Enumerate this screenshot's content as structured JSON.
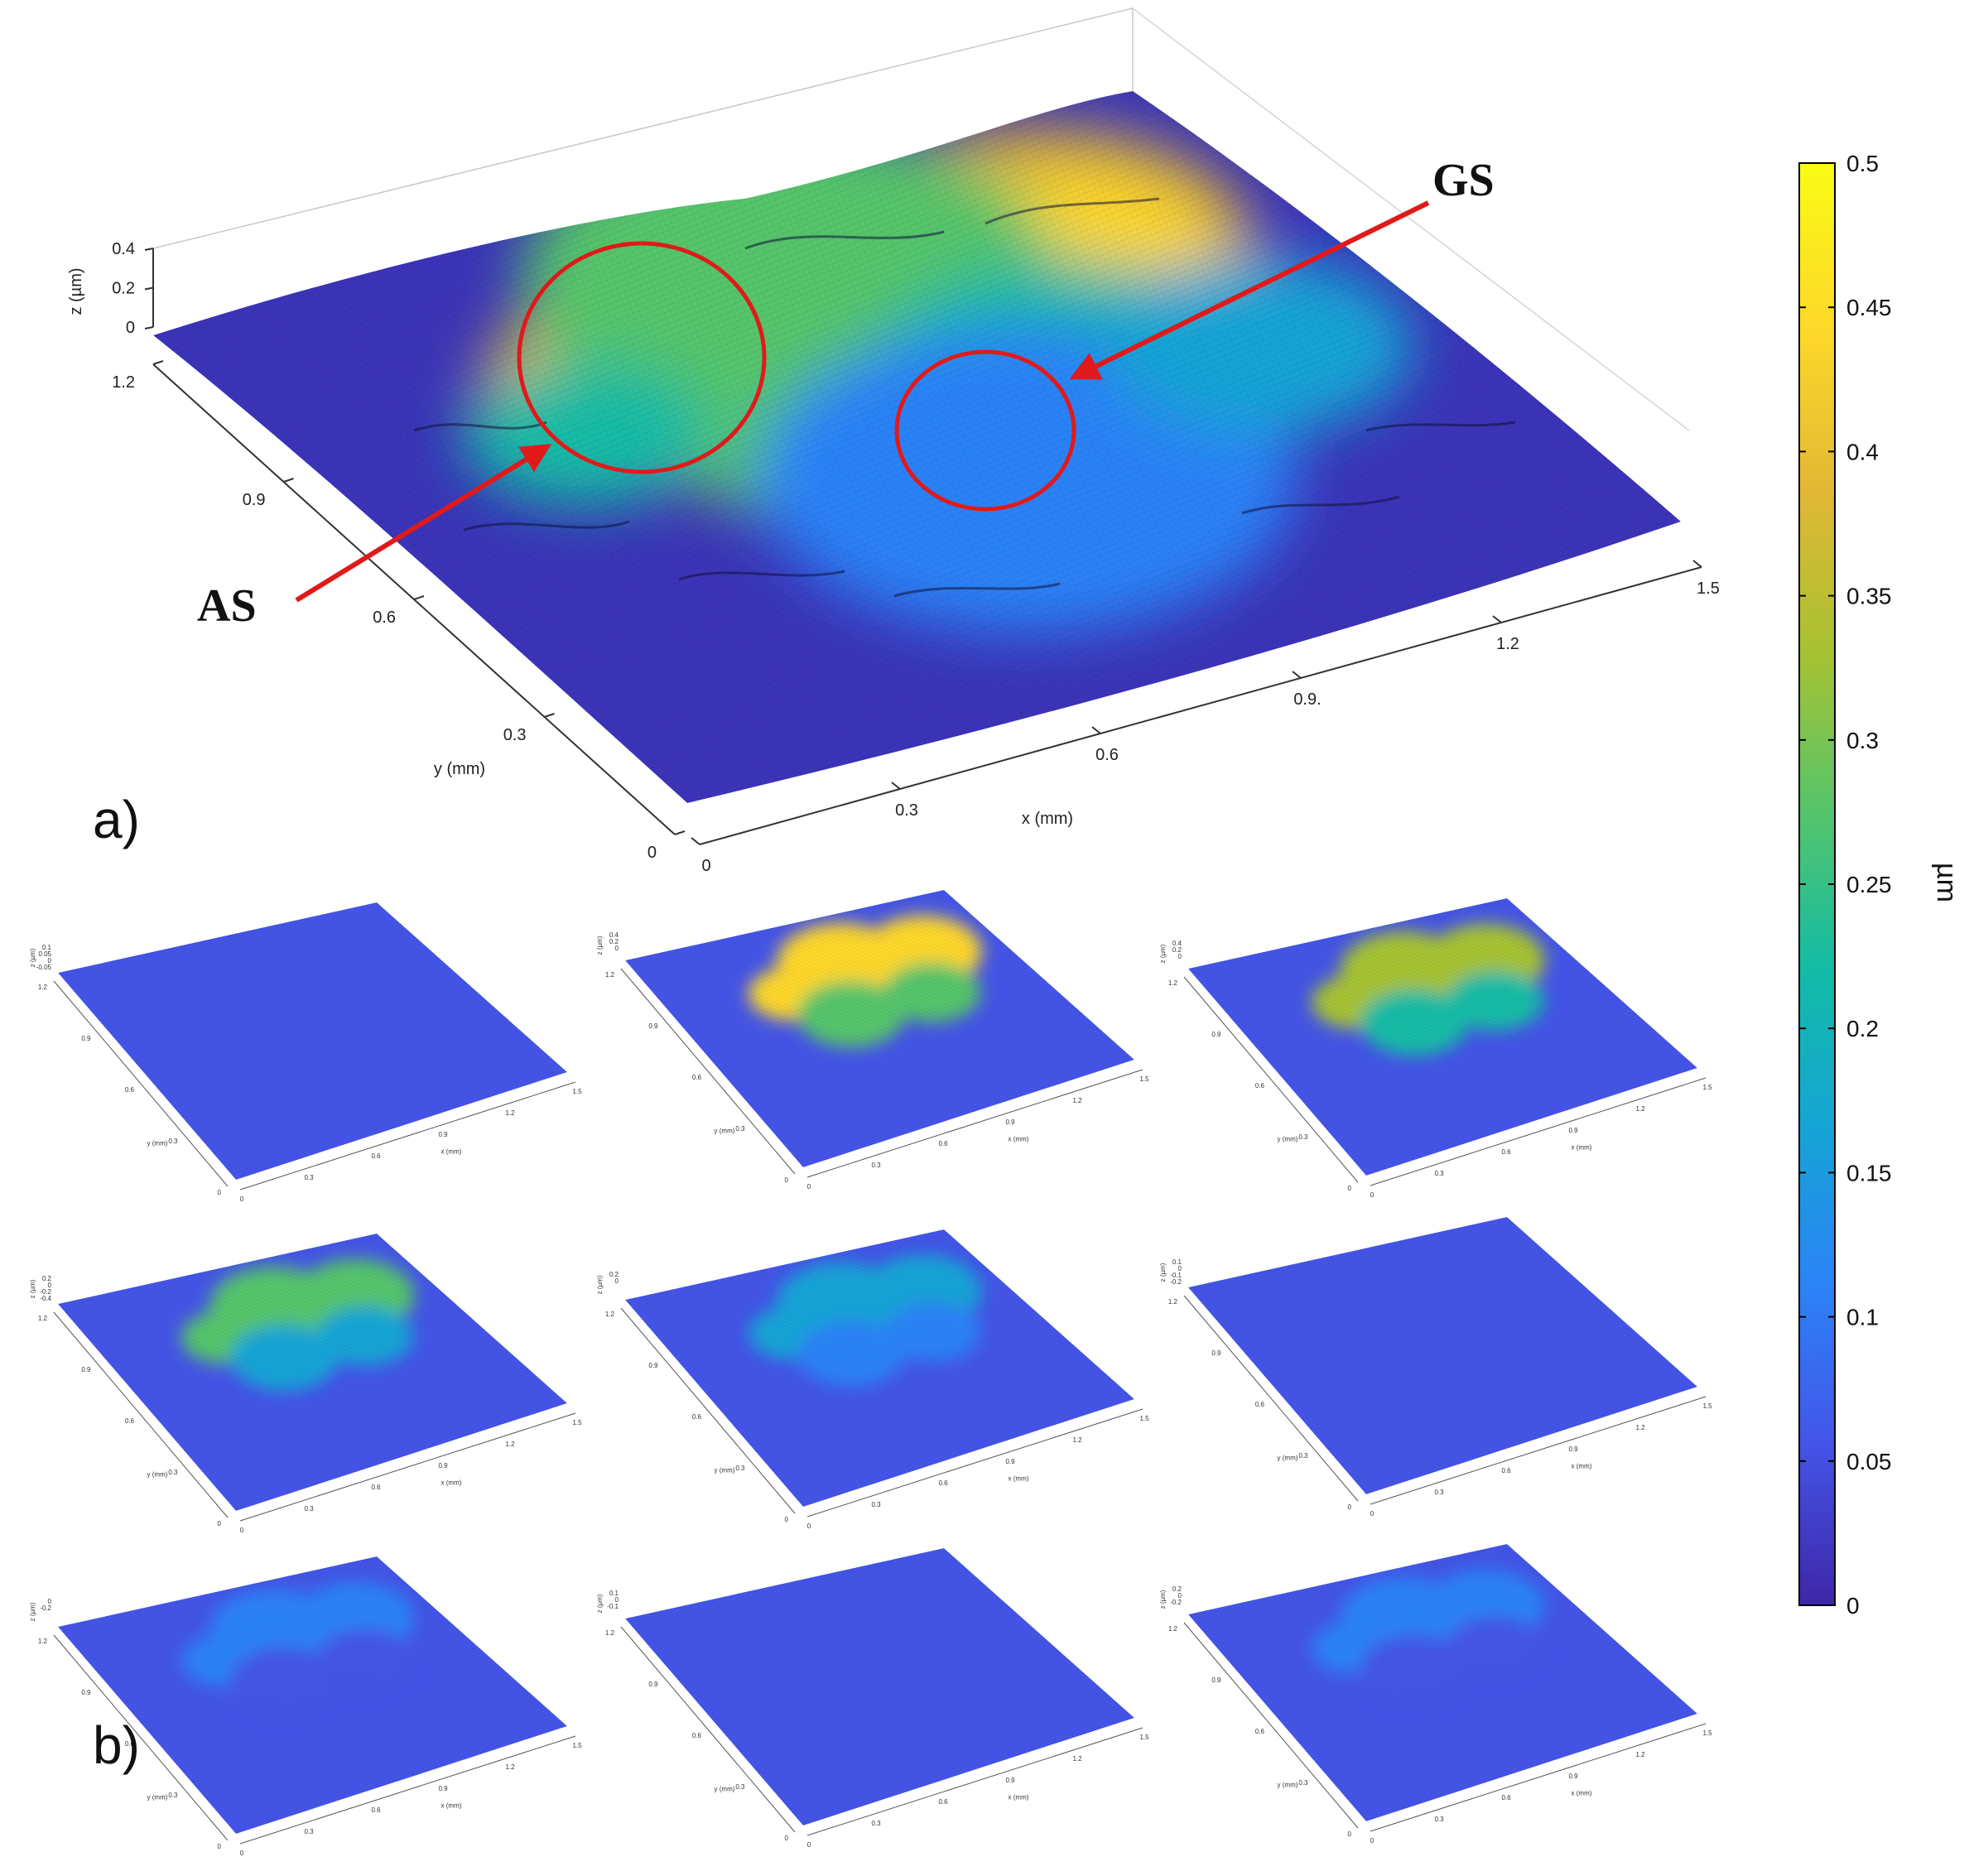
{
  "chart_data": {
    "type": "surface",
    "panel_labels": {
      "a": "a)",
      "b": "b)"
    },
    "main": {
      "x_axis": {
        "label": "x (mm)",
        "ticks": [
          "0",
          "0.3",
          "0.6",
          "0.9.",
          "1.2",
          "1.5"
        ],
        "range": [
          0,
          1.5
        ]
      },
      "y_axis": {
        "label": "y (mm)",
        "ticks": [
          "0",
          "0.3",
          "0.6",
          "0.9",
          "1.2"
        ],
        "range": [
          0,
          1.2
        ]
      },
      "z_axis": {
        "label": "z (µm)",
        "ticks": [
          "0",
          "0.2",
          "0.4"
        ]
      },
      "annotations": [
        {
          "text": "AS",
          "target": "amorphous-region"
        },
        {
          "text": "GS",
          "target": "crystalline-dome"
        }
      ]
    },
    "colorbar": {
      "unit": "µm",
      "range": [
        0,
        0.5
      ],
      "ticks": [
        "0",
        "0.05",
        "0.1",
        "0.15",
        "0.2",
        "0.25",
        "0.3",
        "0.35",
        "0.4",
        "0.45",
        "0.5"
      ],
      "colormap": [
        "#3e26a8",
        "#4454e6",
        "#2c82f7",
        "#16a4d6",
        "#12bba6",
        "#55c46b",
        "#a6c232",
        "#e0b735",
        "#fdd72a",
        "#f9fb15"
      ]
    },
    "small_multiples": [
      {
        "x_ticks": [
          "0",
          "0.3",
          "0.6",
          "0.9",
          "1.2",
          "1.5"
        ],
        "y_ticks": [
          "0",
          "0.3",
          "0.6",
          "0.9",
          "1.2"
        ],
        "z_ticks": [
          "0.1",
          "0.05",
          "0",
          "-0.05"
        ],
        "x_label": "x (mm)",
        "y_label": "y (mm)",
        "z_label": "z (µm)",
        "max_level": 0.06
      },
      {
        "x_ticks": [
          "0",
          "0.3",
          "0.6",
          "0.9",
          "1.2",
          "1.5"
        ],
        "y_ticks": [
          "0",
          "0.3",
          "0.6",
          "0.9",
          "1.2"
        ],
        "z_ticks": [
          "0.4",
          "0.2",
          "0"
        ],
        "x_label": "x (mm)",
        "y_label": "y (mm)",
        "z_label": "z (µm)",
        "max_level": 0.46
      },
      {
        "x_ticks": [
          "0",
          "0.3",
          "0.6",
          "0.9",
          "1.2",
          "1.5"
        ],
        "y_ticks": [
          "0",
          "0.3",
          "0.6",
          "0.9",
          "1.2"
        ],
        "z_ticks": [
          "0.4",
          "0.2",
          "0"
        ],
        "x_label": "x (mm)",
        "y_label": "y (mm)",
        "z_label": "z (µm)",
        "max_level": 0.36
      },
      {
        "x_ticks": [
          "0",
          "0.3",
          "0.6",
          "0.9",
          "1.2",
          "1.5"
        ],
        "y_ticks": [
          "0",
          "0.3",
          "0.6",
          "0.9",
          "1.2"
        ],
        "z_ticks": [
          "0.2",
          "0",
          "-0.2",
          "-0.4"
        ],
        "x_label": "x (mm)",
        "y_label": "y (mm)",
        "z_label": "z (µm)",
        "max_level": 0.28
      },
      {
        "x_ticks": [
          "0",
          "0.3",
          "0.6",
          "0.9",
          "1.2",
          "1.5"
        ],
        "y_ticks": [
          "0",
          "0.3",
          "0.6",
          "0.9",
          "1.2"
        ],
        "z_ticks": [
          "0.2",
          "0"
        ],
        "x_label": "x (mm)",
        "y_label": "y (mm)",
        "z_label": "z (µm)",
        "max_level": 0.14
      },
      {
        "x_ticks": [
          "0",
          "0.3",
          "0.6",
          "0.9",
          "1.2",
          "1.5"
        ],
        "y_ticks": [
          "0",
          "0.3",
          "0.6",
          "0.9",
          "1.2"
        ],
        "z_ticks": [
          "0.1",
          "0",
          "-0.1",
          "-0.2"
        ],
        "x_label": "x (mm)",
        "y_label": "y (mm)",
        "z_label": "z (µm)",
        "max_level": 0.06
      },
      {
        "x_ticks": [
          "0",
          "0.3",
          "0.6",
          "0.9",
          "1.2",
          "1.5"
        ],
        "y_ticks": [
          "0",
          "0.3",
          "0.6",
          "0.9",
          "1.2"
        ],
        "z_ticks": [
          "0",
          "-0.2"
        ],
        "x_label": "x (mm)",
        "y_label": "y (mm)",
        "z_label": "z (µm)",
        "max_level": 0.1
      },
      {
        "x_ticks": [
          "0",
          "0.3",
          "0.6",
          "0.9",
          "1.2",
          "1.5"
        ],
        "y_ticks": [
          "0",
          "0.3",
          "0.6",
          "0.9",
          "1.2"
        ],
        "z_ticks": [
          "0.1",
          "0",
          "-0.1"
        ],
        "x_label": "x (mm)",
        "y_label": "y (mm)",
        "z_label": "z (µm)",
        "max_level": 0.06
      },
      {
        "x_ticks": [
          "0",
          "0.3",
          "0.6",
          "0.9",
          "1.2",
          "1.5"
        ],
        "y_ticks": [
          "0",
          "0.3",
          "0.6",
          "0.9",
          "1.2"
        ],
        "z_ticks": [
          "0.2",
          "0",
          "-0.2"
        ],
        "x_label": "x (mm)",
        "y_label": "y (mm)",
        "z_label": "z (µm)",
        "max_level": 0.1
      }
    ]
  }
}
